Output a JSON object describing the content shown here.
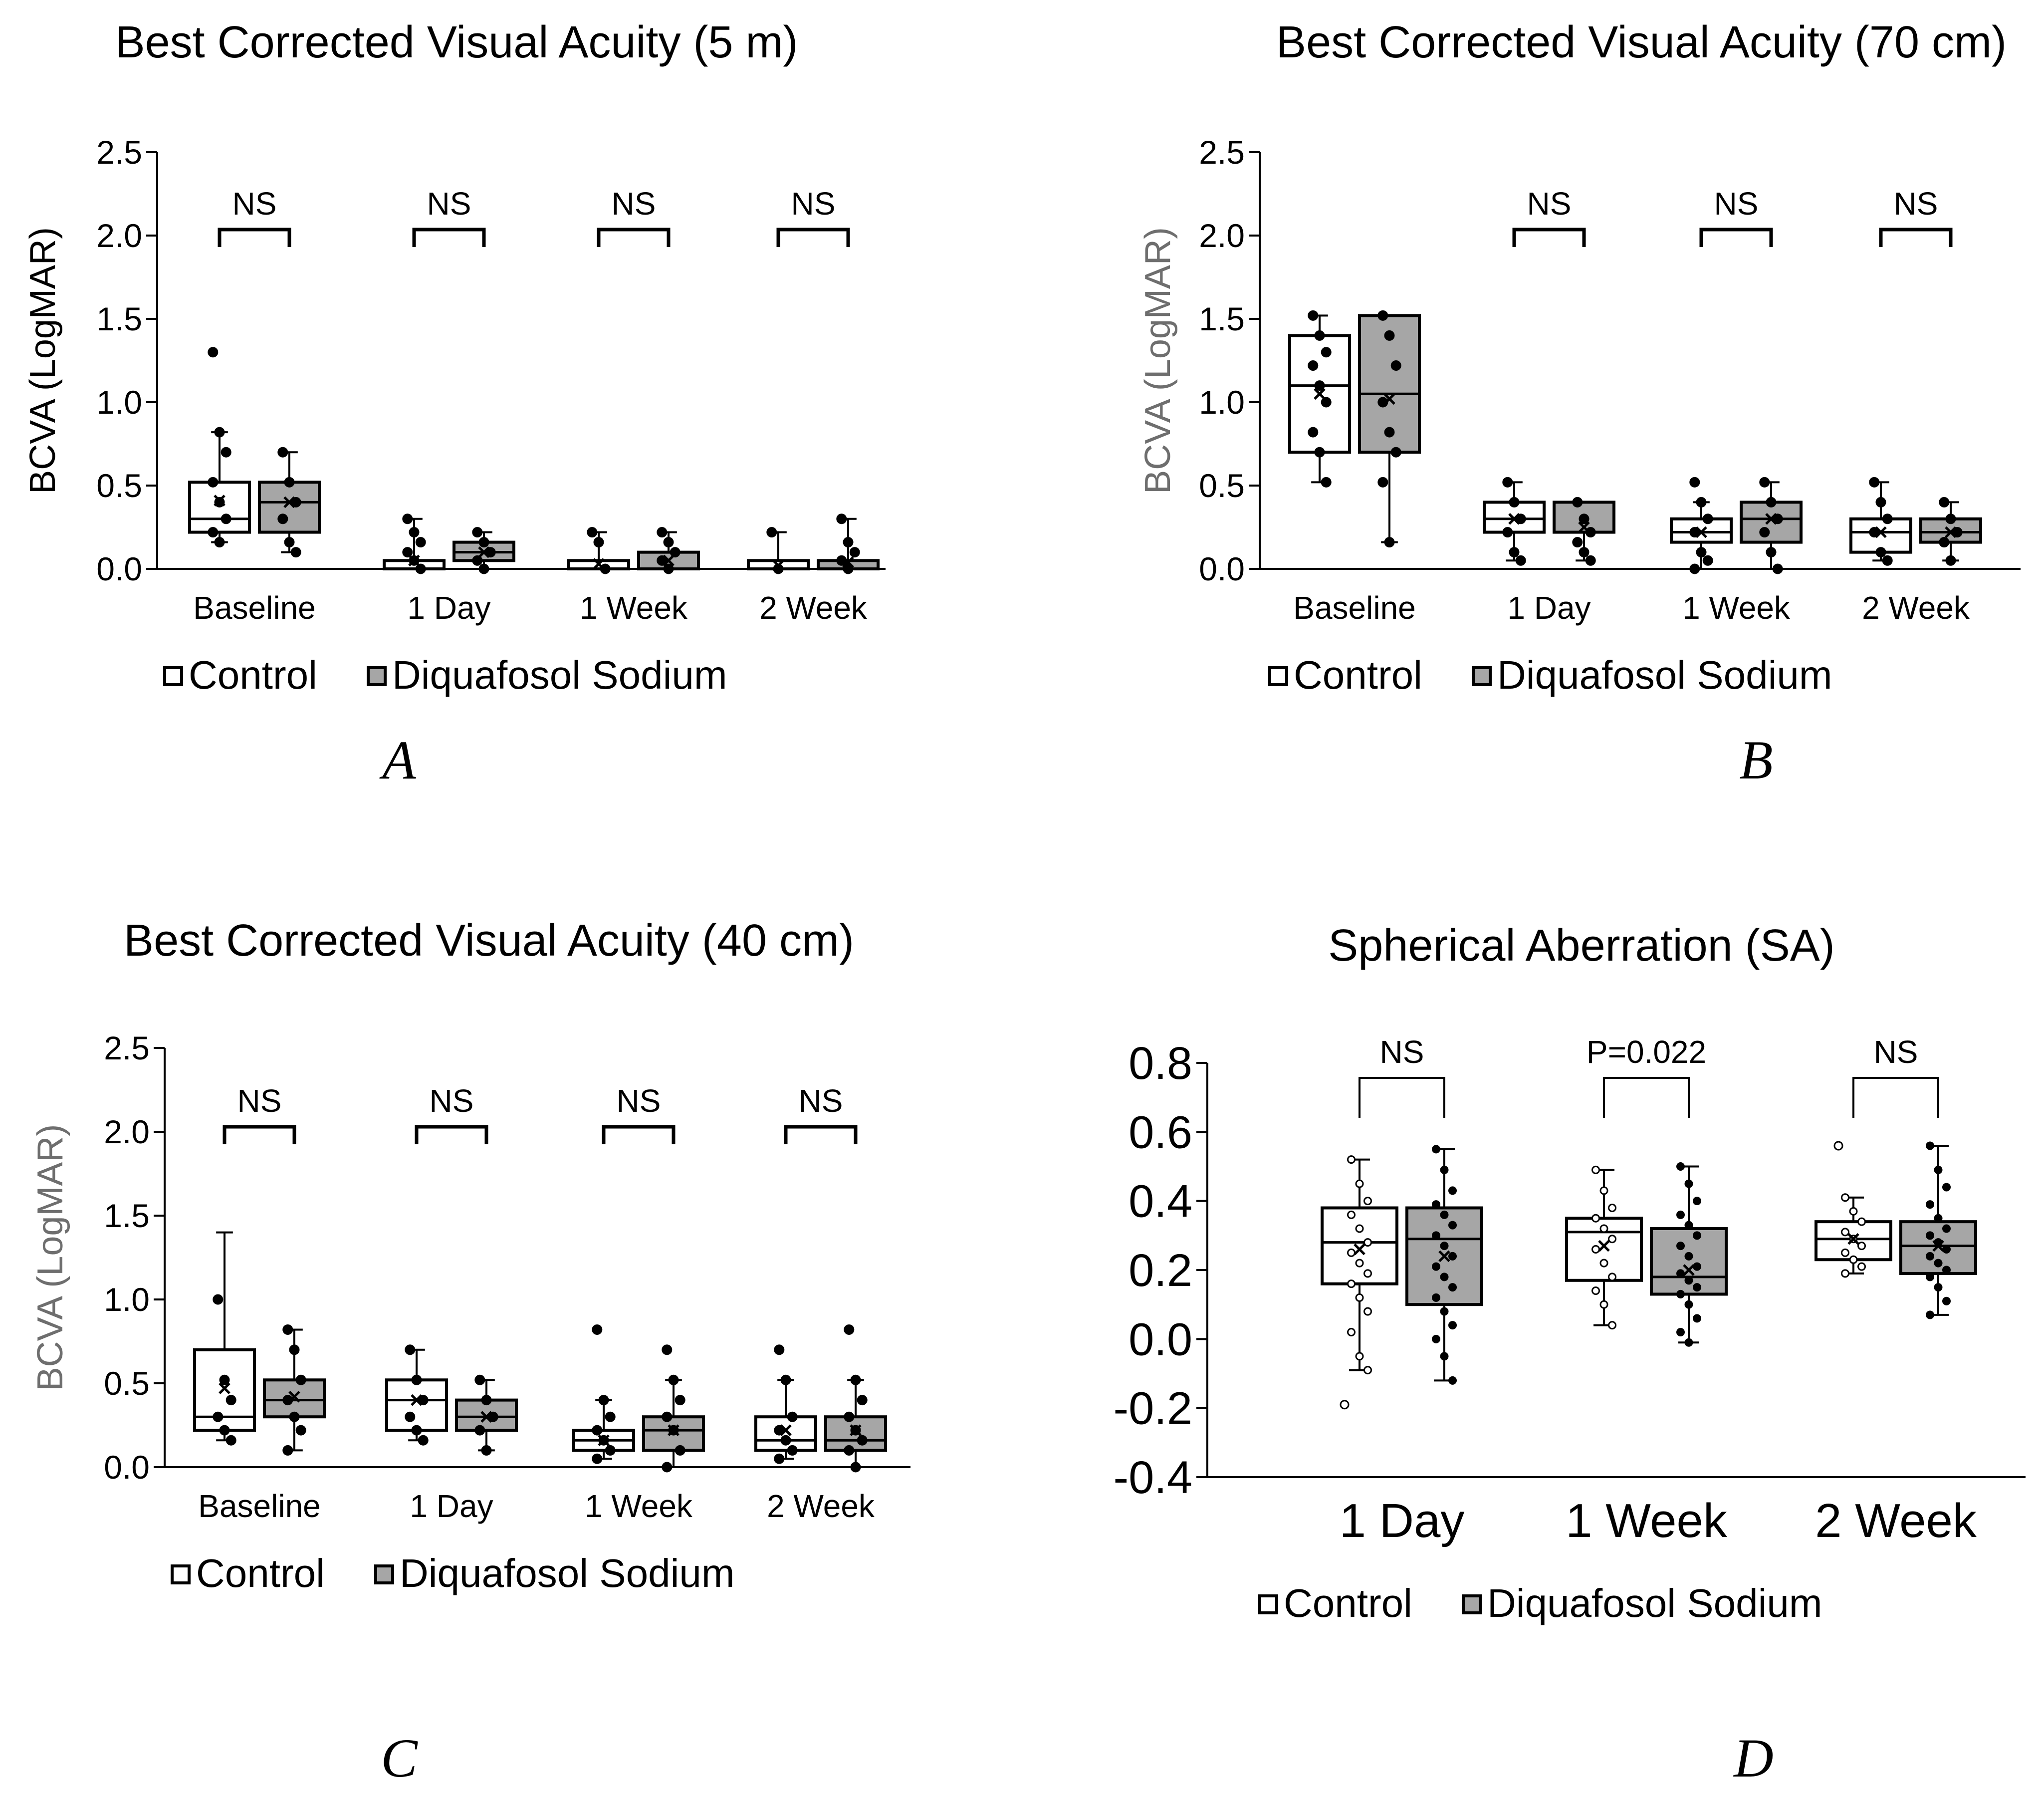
{
  "colors": {
    "control": "#ffffff",
    "diquafosol": "#a6a6a6",
    "stroke": "#000000",
    "ylabel_gray": "#6e6e6e"
  },
  "chart_data": [
    {
      "panel": "A",
      "type": "box",
      "title": "Best Corrected Visual Acuity (5 m)",
      "ylabel": "BCVA (LogMAR)",
      "ylim": [
        0,
        2.5
      ],
      "yticks": [
        "0.0",
        "0.5",
        "1.0",
        "1.5",
        "2.0",
        "2.5"
      ],
      "categories": [
        "Baseline",
        "1 Day",
        "1 Week",
        "2 Week"
      ],
      "significance": [
        "NS",
        "NS",
        "NS",
        "NS"
      ],
      "legend": [
        "Control",
        "Diquafosol Sodium"
      ],
      "series": [
        {
          "name": "Control",
          "boxes": [
            {
              "min": 0.16,
              "q1": 0.22,
              "median": 0.3,
              "q3": 0.52,
              "max": 0.82,
              "mean": 0.41,
              "points": [
                1.3,
                0.82,
                0.7,
                0.52,
                0.4,
                0.3,
                0.22,
                0.16
              ]
            },
            {
              "min": 0.0,
              "q1": 0.0,
              "median": 0.0,
              "q3": 0.05,
              "max": 0.3,
              "mean": 0.05,
              "points": [
                0.3,
                0.22,
                0.16,
                0.1,
                0.05,
                0.0
              ]
            },
            {
              "min": 0.0,
              "q1": 0.0,
              "median": 0.0,
              "q3": 0.05,
              "max": 0.22,
              "mean": 0.03,
              "points": [
                0.22,
                0.16,
                0.0
              ]
            },
            {
              "min": 0.0,
              "q1": 0.0,
              "median": 0.0,
              "q3": 0.05,
              "max": 0.22,
              "mean": 0.02,
              "points": [
                0.22,
                0.0
              ]
            }
          ]
        },
        {
          "name": "Diquafosol Sodium",
          "boxes": [
            {
              "min": 0.1,
              "q1": 0.22,
              "median": 0.4,
              "q3": 0.52,
              "max": 0.7,
              "mean": 0.4,
              "points": [
                0.7,
                0.52,
                0.4,
                0.3,
                0.16,
                0.1
              ]
            },
            {
              "min": 0.0,
              "q1": 0.05,
              "median": 0.1,
              "q3": 0.16,
              "max": 0.22,
              "mean": 0.1,
              "points": [
                0.22,
                0.16,
                0.1,
                0.05,
                0.0
              ]
            },
            {
              "min": 0.0,
              "q1": 0.0,
              "median": 0.0,
              "q3": 0.1,
              "max": 0.22,
              "mean": 0.05,
              "points": [
                0.22,
                0.16,
                0.1,
                0.05,
                0.0
              ]
            },
            {
              "min": 0.0,
              "q1": 0.0,
              "median": 0.0,
              "q3": 0.05,
              "max": 0.3,
              "mean": 0.04,
              "points": [
                0.3,
                0.16,
                0.1,
                0.05,
                0.0
              ]
            }
          ]
        }
      ]
    },
    {
      "panel": "B",
      "type": "box",
      "title": "Best Corrected Visual Acuity (70 cm)",
      "ylabel": "BCVA (LogMAR)",
      "ylim": [
        0,
        2.5
      ],
      "yticks": [
        "0.0",
        "0.5",
        "1.0",
        "1.5",
        "2.0",
        "2.5"
      ],
      "categories": [
        "Baseline",
        "1 Day",
        "1 Week",
        "2 Week"
      ],
      "significance": [
        "",
        "NS",
        "NS",
        "NS"
      ],
      "legend": [
        "Control",
        "Diquafosol Sodium"
      ],
      "series": [
        {
          "name": "Control",
          "boxes": [
            {
              "min": 0.52,
              "q1": 0.7,
              "median": 1.1,
              "q3": 1.4,
              "max": 1.52,
              "mean": 1.05,
              "points": [
                1.52,
                1.4,
                1.3,
                1.22,
                1.1,
                1.0,
                0.82,
                0.7,
                0.52
              ]
            },
            {
              "min": 0.05,
              "q1": 0.22,
              "median": 0.3,
              "q3": 0.4,
              "max": 0.52,
              "mean": 0.3,
              "points": [
                0.52,
                0.4,
                0.3,
                0.22,
                0.1,
                0.05
              ]
            },
            {
              "min": 0.0,
              "q1": 0.16,
              "median": 0.22,
              "q3": 0.3,
              "max": 0.4,
              "mean": 0.22,
              "points": [
                0.52,
                0.4,
                0.3,
                0.22,
                0.1,
                0.05,
                0.0
              ]
            },
            {
              "min": 0.05,
              "q1": 0.1,
              "median": 0.22,
              "q3": 0.3,
              "max": 0.52,
              "mean": 0.22,
              "points": [
                0.52,
                0.4,
                0.3,
                0.22,
                0.1,
                0.05
              ]
            }
          ]
        },
        {
          "name": "Diquafosol Sodium",
          "boxes": [
            {
              "min": 0.16,
              "q1": 0.7,
              "median": 1.05,
              "q3": 1.52,
              "max": 1.52,
              "mean": 1.02,
              "points": [
                1.52,
                1.4,
                1.22,
                1.0,
                0.82,
                0.7,
                0.52,
                0.16
              ]
            },
            {
              "min": 0.05,
              "q1": 0.22,
              "median": 0.22,
              "q3": 0.4,
              "max": 0.4,
              "mean": 0.25,
              "points": [
                0.4,
                0.3,
                0.22,
                0.16,
                0.1,
                0.05
              ]
            },
            {
              "min": 0.0,
              "q1": 0.16,
              "median": 0.3,
              "q3": 0.4,
              "max": 0.52,
              "mean": 0.3,
              "points": [
                0.52,
                0.4,
                0.3,
                0.22,
                0.1,
                0.0
              ]
            },
            {
              "min": 0.05,
              "q1": 0.16,
              "median": 0.22,
              "q3": 0.3,
              "max": 0.4,
              "mean": 0.22,
              "points": [
                0.4,
                0.3,
                0.22,
                0.16,
                0.05
              ]
            }
          ]
        }
      ]
    },
    {
      "panel": "C",
      "type": "box",
      "title": "Best Corrected Visual Acuity (40 cm)",
      "ylabel": "BCVA (LogMAR)",
      "ylim": [
        0,
        2.5
      ],
      "yticks": [
        "0.0",
        "0.5",
        "1.0",
        "1.5",
        "2.0",
        "2.5"
      ],
      "categories": [
        "Baseline",
        "1 Day",
        "1 Week",
        "2 Week"
      ],
      "significance": [
        "NS",
        "NS",
        "NS",
        "NS"
      ],
      "legend": [
        "Control",
        "Diquafosol Sodium"
      ],
      "series": [
        {
          "name": "Control",
          "boxes": [
            {
              "min": 0.16,
              "q1": 0.22,
              "median": 0.3,
              "q3": 0.7,
              "max": 1.4,
              "mean": 0.47,
              "points": [
                1.0,
                0.52,
                0.4,
                0.3,
                0.22,
                0.16
              ]
            },
            {
              "min": 0.16,
              "q1": 0.22,
              "median": 0.4,
              "q3": 0.52,
              "max": 0.7,
              "mean": 0.4,
              "points": [
                0.7,
                0.52,
                0.4,
                0.3,
                0.22,
                0.16
              ]
            },
            {
              "min": 0.05,
              "q1": 0.1,
              "median": 0.16,
              "q3": 0.22,
              "max": 0.4,
              "mean": 0.16,
              "points": [
                0.82,
                0.4,
                0.3,
                0.22,
                0.16,
                0.1,
                0.05
              ]
            },
            {
              "min": 0.05,
              "q1": 0.1,
              "median": 0.16,
              "q3": 0.3,
              "max": 0.52,
              "mean": 0.22,
              "points": [
                0.7,
                0.52,
                0.3,
                0.22,
                0.16,
                0.1,
                0.05
              ]
            }
          ]
        },
        {
          "name": "Diquafosol Sodium",
          "boxes": [
            {
              "min": 0.1,
              "q1": 0.3,
              "median": 0.4,
              "q3": 0.52,
              "max": 0.82,
              "mean": 0.42,
              "points": [
                0.82,
                0.7,
                0.52,
                0.4,
                0.3,
                0.22,
                0.1
              ]
            },
            {
              "min": 0.1,
              "q1": 0.22,
              "median": 0.3,
              "q3": 0.4,
              "max": 0.52,
              "mean": 0.3,
              "points": [
                0.52,
                0.4,
                0.3,
                0.22,
                0.1
              ]
            },
            {
              "min": 0.0,
              "q1": 0.1,
              "median": 0.22,
              "q3": 0.3,
              "max": 0.52,
              "mean": 0.22,
              "points": [
                0.7,
                0.52,
                0.4,
                0.3,
                0.22,
                0.1,
                0.0
              ]
            },
            {
              "min": 0.0,
              "q1": 0.1,
              "median": 0.16,
              "q3": 0.3,
              "max": 0.52,
              "mean": 0.22,
              "points": [
                0.82,
                0.52,
                0.4,
                0.3,
                0.22,
                0.16,
                0.1,
                0.0
              ]
            }
          ]
        }
      ]
    },
    {
      "panel": "D",
      "type": "box",
      "title": "Spherical Aberration (SA)",
      "ylabel": "",
      "ylim": [
        -0.4,
        0.8
      ],
      "yticks": [
        "-0.4",
        "-0.2",
        "0.0",
        "0.2",
        "0.4",
        "0.6",
        "0.8"
      ],
      "categories": [
        "1 Day",
        "1 Week",
        "2 Week"
      ],
      "significance": [
        "NS",
        "P=0.022",
        "NS"
      ],
      "legend": [
        "Control",
        "Diquafosol Sodium"
      ],
      "series": [
        {
          "name": "Control",
          "boxes": [
            {
              "min": -0.09,
              "q1": 0.16,
              "median": 0.28,
              "q3": 0.38,
              "max": 0.52,
              "mean": 0.26,
              "outliers": [
                -0.19
              ],
              "points": [
                0.52,
                0.45,
                0.4,
                0.36,
                0.32,
                0.28,
                0.25,
                0.22,
                0.19,
                0.16,
                0.12,
                0.08,
                0.02,
                -0.05,
                -0.09
              ]
            },
            {
              "min": 0.04,
              "q1": 0.17,
              "median": 0.31,
              "q3": 0.35,
              "max": 0.49,
              "mean": 0.27,
              "outliers": [],
              "points": [
                0.49,
                0.43,
                0.38,
                0.35,
                0.32,
                0.29,
                0.26,
                0.22,
                0.18,
                0.14,
                0.1,
                0.04
              ]
            },
            {
              "min": 0.19,
              "q1": 0.23,
              "median": 0.29,
              "q3": 0.34,
              "max": 0.41,
              "mean": 0.29,
              "outliers": [
                0.56
              ],
              "points": [
                0.41,
                0.37,
                0.34,
                0.31,
                0.29,
                0.27,
                0.25,
                0.23,
                0.21,
                0.19
              ]
            }
          ]
        },
        {
          "name": "Diquafosol Sodium",
          "boxes": [
            {
              "min": -0.12,
              "q1": 0.1,
              "median": 0.29,
              "q3": 0.38,
              "max": 0.55,
              "mean": 0.24,
              "outliers": [],
              "points": [
                0.55,
                0.49,
                0.43,
                0.39,
                0.36,
                0.33,
                0.3,
                0.27,
                0.24,
                0.21,
                0.18,
                0.15,
                0.12,
                0.08,
                0.04,
                0.0,
                -0.05,
                -0.12
              ]
            },
            {
              "min": -0.01,
              "q1": 0.13,
              "median": 0.18,
              "q3": 0.32,
              "max": 0.5,
              "mean": 0.2,
              "outliers": [],
              "points": [
                0.5,
                0.45,
                0.4,
                0.36,
                0.33,
                0.3,
                0.27,
                0.24,
                0.21,
                0.19,
                0.17,
                0.15,
                0.13,
                0.1,
                0.06,
                0.02,
                -0.01
              ]
            },
            {
              "min": 0.07,
              "q1": 0.19,
              "median": 0.27,
              "q3": 0.34,
              "max": 0.56,
              "mean": 0.27,
              "outliers": [],
              "points": [
                0.56,
                0.49,
                0.44,
                0.39,
                0.35,
                0.32,
                0.3,
                0.28,
                0.26,
                0.24,
                0.22,
                0.2,
                0.18,
                0.15,
                0.11,
                0.07
              ]
            }
          ]
        }
      ]
    }
  ]
}
